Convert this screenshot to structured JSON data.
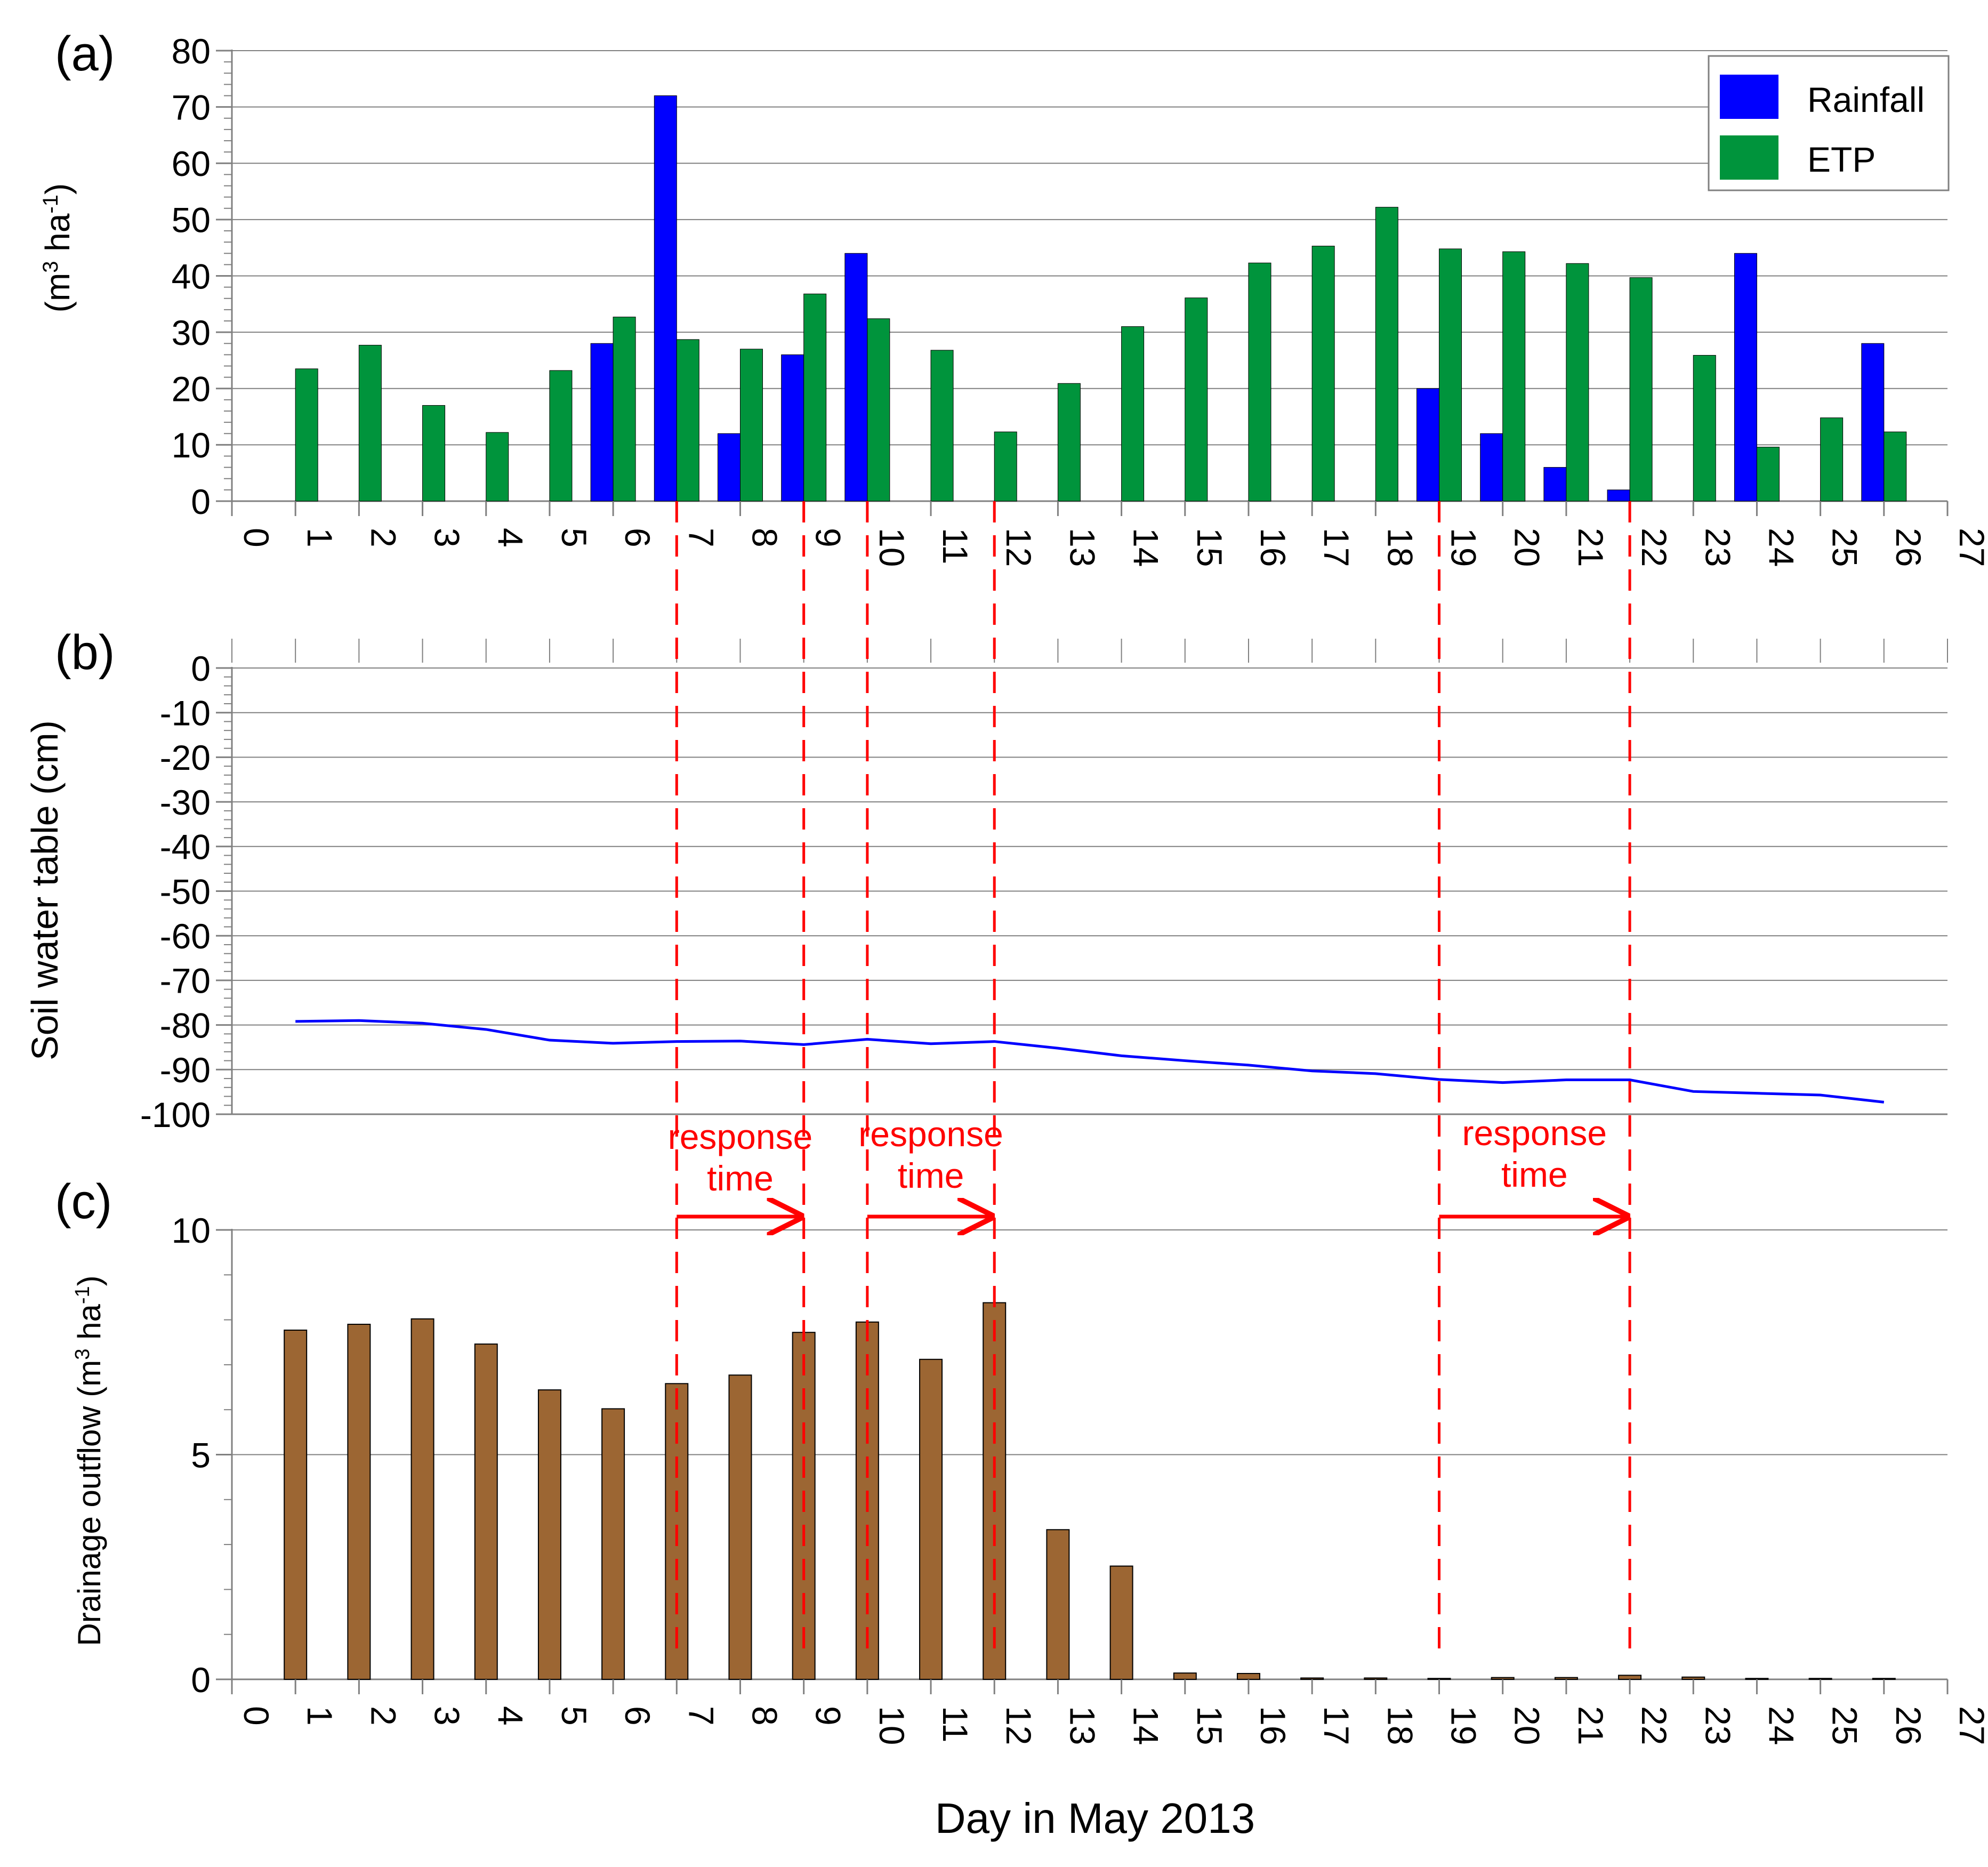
{
  "colors": {
    "rainfall": "#0000FF",
    "etp": "#00943C",
    "drainage": "#9C6633",
    "water_table": "#0000FF",
    "response": "#FF0000",
    "grid": "#808080",
    "axis": "#808080"
  },
  "chart_data": [
    {
      "panel": "a",
      "panel_label": "(a)",
      "type": "bar",
      "ylabel_main": "(m",
      "ylabel_sup1": "3",
      "ylabel_mid": " ha",
      "ylabel_sup2": "-1",
      "ylabel_end": ")",
      "xlim": [
        0,
        27
      ],
      "ylim": [
        0,
        80
      ],
      "yticks": [
        0,
        10,
        20,
        30,
        40,
        50,
        60,
        70,
        80
      ],
      "x": [
        1,
        2,
        3,
        4,
        5,
        6,
        7,
        8,
        9,
        10,
        11,
        12,
        13,
        14,
        15,
        16,
        17,
        18,
        19,
        20,
        21,
        22,
        23,
        24,
        25,
        26
      ],
      "series": [
        {
          "name": "Rainfall",
          "values": [
            0,
            0,
            0,
            0,
            0,
            28,
            72,
            12,
            26,
            44,
            0,
            0,
            0,
            0,
            0,
            0,
            0,
            0,
            20,
            12,
            6,
            2,
            0,
            44,
            0,
            28
          ]
        },
        {
          "name": "ETP",
          "values": [
            23.5,
            27.7,
            17,
            12.2,
            23.2,
            32.7,
            28.7,
            27,
            36.8,
            32.4,
            26.8,
            12.3,
            20.9,
            31,
            36.1,
            42.3,
            45.3,
            52.2,
            44.8,
            44.3,
            42.2,
            39.7,
            25.9,
            9.6,
            14.8,
            12.3
          ]
        }
      ],
      "legend": [
        "Rainfall",
        "ETP"
      ],
      "legend_position": "top-right"
    },
    {
      "panel": "b",
      "panel_label": "(b)",
      "type": "line",
      "ylabel": "Soil water table (cm)",
      "xlim": [
        0,
        27
      ],
      "ylim": [
        -100,
        0
      ],
      "yticks": [
        0,
        -10,
        -20,
        -30,
        -40,
        -50,
        -60,
        -70,
        -80,
        -90,
        -100
      ],
      "x": [
        1,
        2,
        3,
        4,
        5,
        6,
        7,
        8,
        9,
        10,
        11,
        12,
        13,
        14,
        15,
        16,
        17,
        18,
        19,
        20,
        21,
        22,
        23,
        24,
        25,
        26
      ],
      "series": [
        {
          "name": "Soil water table",
          "values": [
            -79.2,
            -79,
            -79.6,
            -81,
            -83.4,
            -84.1,
            -83.7,
            -83.6,
            -84.4,
            -83.2,
            -84.2,
            -83.7,
            -85.2,
            -86.9,
            -88,
            -89,
            -90.3,
            -90.9,
            -92.2,
            -92.9,
            -92.3,
            -92.3,
            -94.9,
            -95.3,
            -95.7,
            -97.3
          ]
        }
      ]
    },
    {
      "panel": "c",
      "panel_label": "(c)",
      "type": "bar",
      "ylabel_main": "Drainage outflow (m",
      "ylabel_sup1": "3",
      "ylabel_mid": " ha",
      "ylabel_sup2": "-1",
      "ylabel_end": ")",
      "xlabel": "Day in May 2013",
      "xlim": [
        0,
        27
      ],
      "ylim": [
        0,
        10
      ],
      "yticks": [
        0,
        5,
        10
      ],
      "x": [
        1,
        2,
        3,
        4,
        5,
        6,
        7,
        8,
        9,
        10,
        11,
        12,
        13,
        14,
        15,
        16,
        17,
        18,
        19,
        20,
        21,
        22,
        23,
        24,
        25,
        26
      ],
      "series": [
        {
          "name": "Drainage outflow",
          "values": [
            7.77,
            7.9,
            8.02,
            7.46,
            6.44,
            6.02,
            6.58,
            6.77,
            7.72,
            7.95,
            7.12,
            8.38,
            3.33,
            2.52,
            0.14,
            0.13,
            0.03,
            0.03,
            0.02,
            0.04,
            0.04,
            0.09,
            0.05,
            0.02,
            0.02,
            0.02
          ]
        }
      ]
    }
  ],
  "annotations": {
    "response_label_line1": "response",
    "response_label_line2": "time",
    "response_windows": [
      {
        "start_day": 7,
        "end_day": 9
      },
      {
        "start_day": 10,
        "end_day": 12
      },
      {
        "start_day": 19,
        "end_day": 22
      }
    ]
  },
  "xticks": [
    0,
    1,
    2,
    3,
    4,
    5,
    6,
    7,
    8,
    9,
    10,
    11,
    12,
    13,
    14,
    15,
    16,
    17,
    18,
    19,
    20,
    21,
    22,
    23,
    24,
    25,
    26,
    27
  ]
}
